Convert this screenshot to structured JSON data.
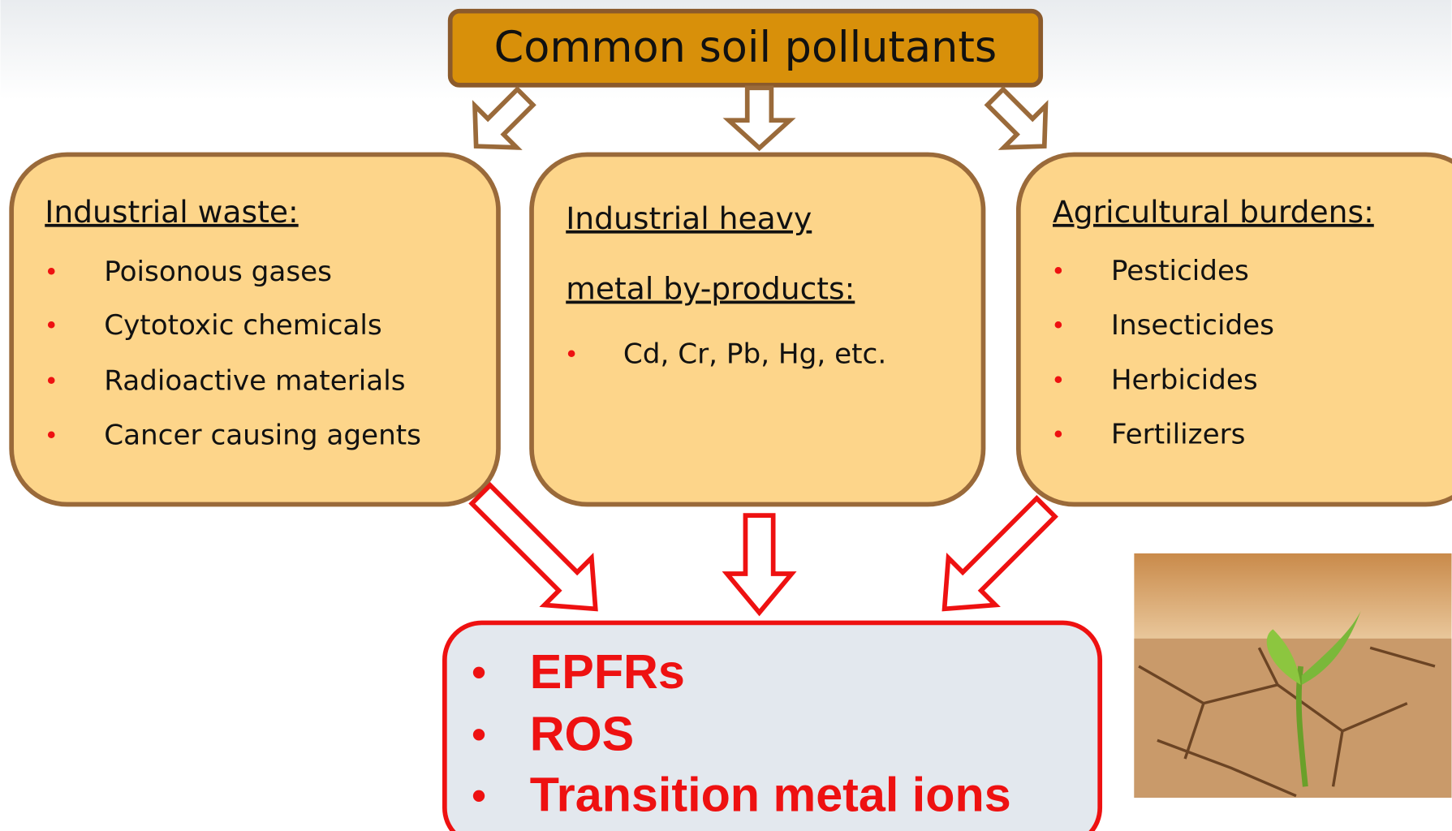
{
  "title": "Common soil pollutants",
  "sources": [
    {
      "heading": [
        "Industrial waste:"
      ],
      "items": [
        "Poisonous gases",
        "Cytotoxic chemicals",
        "Radioactive materials",
        "Cancer causing agents"
      ]
    },
    {
      "heading": [
        "Industrial heavy",
        "metal by-products:"
      ],
      "items": [
        "Cd, Cr, Pb, Hg, etc."
      ]
    },
    {
      "heading": [
        "Agricultural burdens:"
      ],
      "items": [
        "Pesticides",
        "Insecticides",
        "Herbicides",
        "Fertilizers"
      ]
    }
  ],
  "results": [
    "EPFRs",
    "ROS",
    "Transition metal ions"
  ]
}
